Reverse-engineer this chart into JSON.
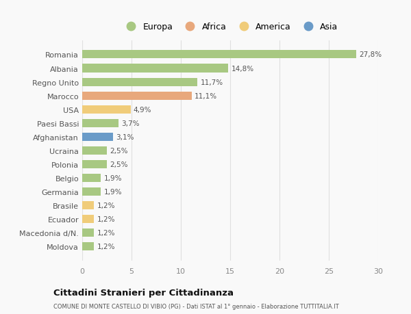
{
  "countries": [
    "Romania",
    "Albania",
    "Regno Unito",
    "Marocco",
    "USA",
    "Paesi Bassi",
    "Afghanistan",
    "Ucraina",
    "Polonia",
    "Belgio",
    "Germania",
    "Brasile",
    "Ecuador",
    "Macedonia d/N.",
    "Moldova"
  ],
  "values": [
    27.8,
    14.8,
    11.7,
    11.1,
    4.9,
    3.7,
    3.1,
    2.5,
    2.5,
    1.9,
    1.9,
    1.2,
    1.2,
    1.2,
    1.2
  ],
  "labels": [
    "27,8%",
    "14,8%",
    "11,7%",
    "11,1%",
    "4,9%",
    "3,7%",
    "3,1%",
    "2,5%",
    "2,5%",
    "1,9%",
    "1,9%",
    "1,2%",
    "1,2%",
    "1,2%",
    "1,2%"
  ],
  "continents": [
    "Europa",
    "Europa",
    "Europa",
    "Africa",
    "America",
    "Europa",
    "Asia",
    "Europa",
    "Europa",
    "Europa",
    "Europa",
    "America",
    "America",
    "Europa",
    "Europa"
  ],
  "colors": {
    "Europa": "#a8c882",
    "Africa": "#e8a87c",
    "America": "#f0cc7a",
    "Asia": "#6a9bc8"
  },
  "legend_order": [
    "Europa",
    "Africa",
    "America",
    "Asia"
  ],
  "title": "Cittadini Stranieri per Cittadinanza",
  "subtitle": "COMUNE DI MONTE CASTELLO DI VIBIO (PG) - Dati ISTAT al 1° gennaio - Elaborazione TUTTITALIA.IT",
  "xlim": [
    0,
    30
  ],
  "xticks": [
    0,
    5,
    10,
    15,
    20,
    25,
    30
  ],
  "background_color": "#f9f9f9",
  "grid_color": "#e0e0e0",
  "bar_height": 0.6
}
